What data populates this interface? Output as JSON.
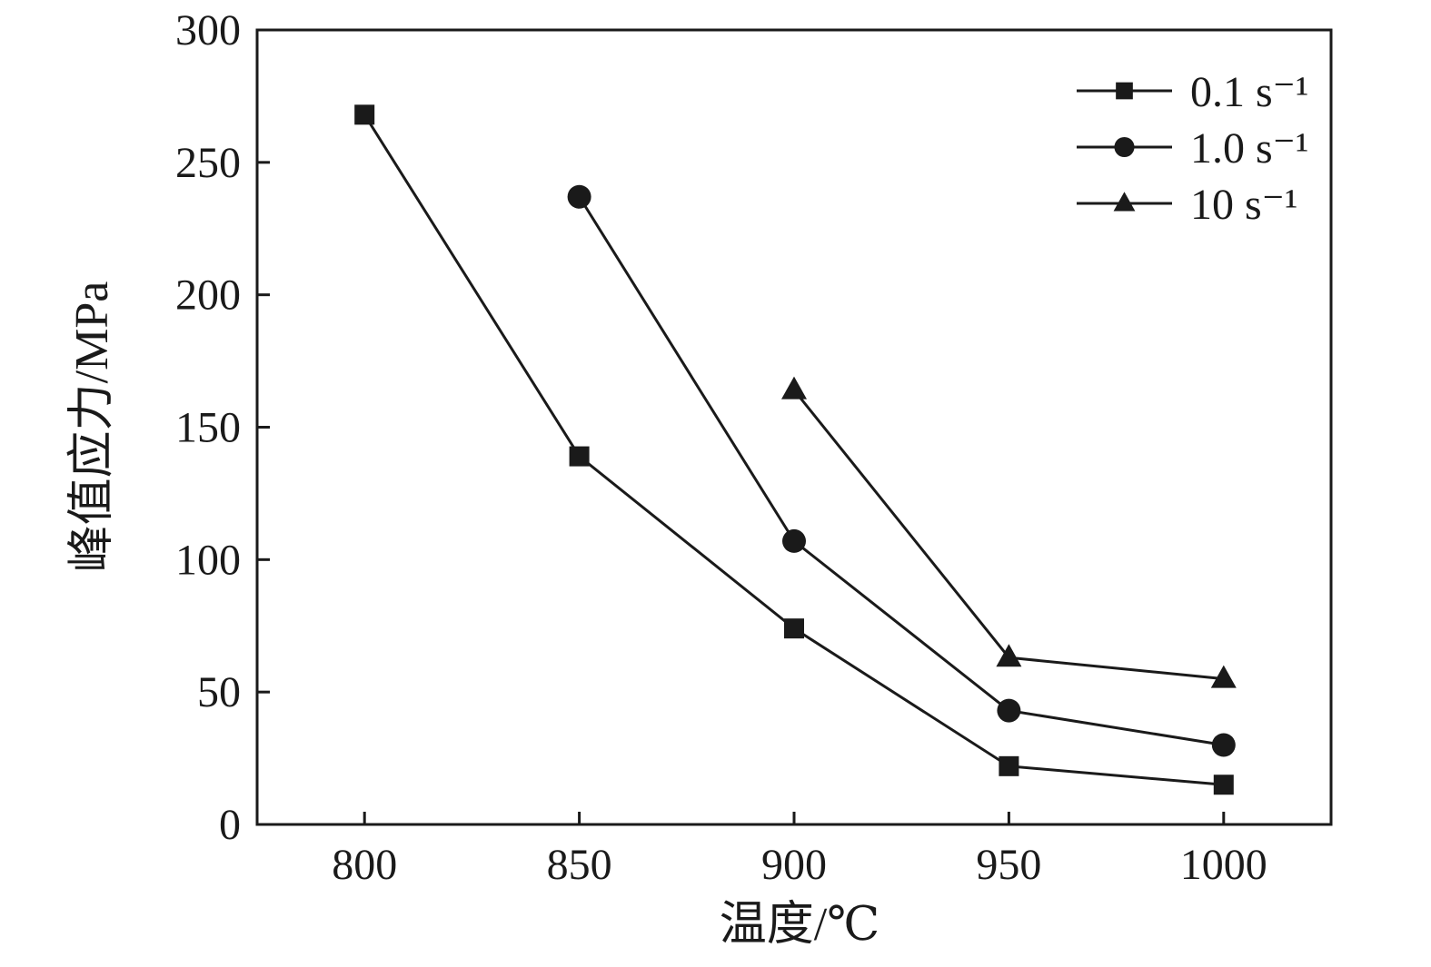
{
  "chart_data": {
    "type": "line",
    "title": "",
    "xlabel": "温度/℃",
    "ylabel": "峰值应力/MPa",
    "xlim": [
      775,
      1025
    ],
    "ylim": [
      0,
      300
    ],
    "x_ticks": [
      800,
      850,
      900,
      950,
      1000
    ],
    "y_ticks": [
      0,
      50,
      100,
      150,
      200,
      250,
      300
    ],
    "grid": false,
    "legend_position": "top-right",
    "line_color": "#1a1a1a",
    "series": [
      {
        "name": "0.1 s⁻¹",
        "marker": "square",
        "x": [
          800,
          850,
          900,
          950,
          1000
        ],
        "values": [
          268,
          139,
          74,
          22,
          15
        ]
      },
      {
        "name": "1.0 s⁻¹",
        "marker": "circle",
        "x": [
          850,
          900,
          950,
          1000
        ],
        "values": [
          237,
          107,
          43,
          30
        ]
      },
      {
        "name": "10 s⁻¹",
        "marker": "triangle",
        "x": [
          900,
          950,
          1000
        ],
        "values": [
          164,
          63,
          55
        ]
      }
    ]
  }
}
